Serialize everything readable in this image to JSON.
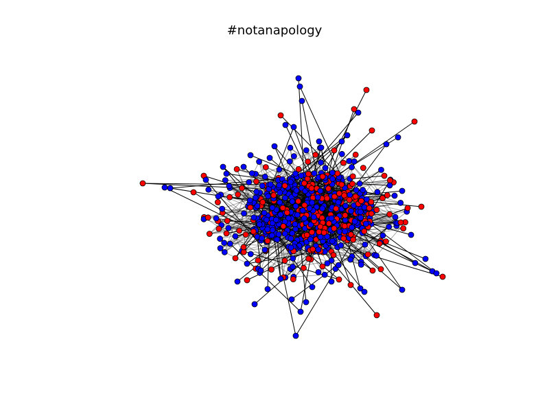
{
  "title": "#notanapology",
  "colors": {
    "background": "#ffffff",
    "edge": "#000000",
    "node_blue": "#0000ff",
    "node_red": "#ff0000",
    "node_outline": "#000000"
  }
}
